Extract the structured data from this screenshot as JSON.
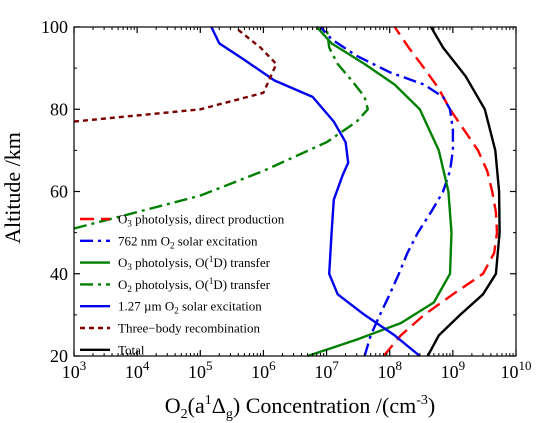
{
  "chart_data": {
    "type": "line",
    "xscale": "log",
    "xlim": [
      1000,
      10000000000
    ],
    "ylim": [
      20,
      100
    ],
    "x_ticks": [
      {
        "value": 1000,
        "base": "10",
        "exp": "3"
      },
      {
        "value": 10000,
        "base": "10",
        "exp": "4"
      },
      {
        "value": 100000,
        "base": "10",
        "exp": "5"
      },
      {
        "value": 1000000,
        "base": "10",
        "exp": "6"
      },
      {
        "value": 10000000,
        "base": "10",
        "exp": "7"
      },
      {
        "value": 100000000,
        "base": "10",
        "exp": "8"
      },
      {
        "value": 1000000000,
        "base": "10",
        "exp": "9"
      },
      {
        "value": 10000000000,
        "base": "10",
        "exp": "10"
      }
    ],
    "y_ticks": [
      {
        "value": 20,
        "label": "20"
      },
      {
        "value": 40,
        "label": "40"
      },
      {
        "value": 60,
        "label": "60"
      },
      {
        "value": 80,
        "label": "80"
      },
      {
        "value": 100,
        "label": "100"
      }
    ],
    "ylabel": "Altitude /km",
    "xlabel": {
      "prefix": "O",
      "sub1": "2",
      "mid1": "(a",
      "sup1": "1",
      "mid2": "Δ",
      "sub2": "g",
      "mid3": ") Concentration /(cm",
      "sup2": "-3",
      "suffix": ")"
    },
    "legend_position": "bottom-left",
    "series": [
      {
        "name": "O3 photolysis, direct production",
        "label": {
          "p1": "O",
          "s1": "3",
          "p2": " photolysis, direct production"
        },
        "color": "#ff0000",
        "dash": "dash",
        "points": [
          [
            80000000,
            20
          ],
          [
            150000000,
            25
          ],
          [
            350000000,
            30
          ],
          [
            1000000000,
            35
          ],
          [
            3000000000,
            40
          ],
          [
            4500000000,
            45
          ],
          [
            5000000000,
            50
          ],
          [
            4800000000,
            55
          ],
          [
            4200000000,
            60
          ],
          [
            3500000000,
            65
          ],
          [
            2500000000,
            70
          ],
          [
            1500000000,
            75
          ],
          [
            900000000,
            80
          ],
          [
            600000000,
            85
          ],
          [
            350000000,
            90
          ],
          [
            200000000,
            95
          ],
          [
            120000000,
            100
          ]
        ]
      },
      {
        "name": "762 nm O2 solar excitation",
        "label": {
          "p1": "762 nm O",
          "s1": "2",
          "p2": " solar excitation"
        },
        "color": "#0000ee",
        "dash": "dashdot",
        "points": [
          [
            40000000,
            20
          ],
          [
            50000000,
            25
          ],
          [
            70000000,
            30
          ],
          [
            100000000,
            35
          ],
          [
            140000000,
            40
          ],
          [
            190000000,
            45
          ],
          [
            280000000,
            50
          ],
          [
            450000000,
            55
          ],
          [
            700000000,
            60
          ],
          [
            900000000,
            65
          ],
          [
            1000000000,
            70
          ],
          [
            1000000000,
            75
          ],
          [
            900000000,
            80
          ],
          [
            700000000,
            83
          ],
          [
            350000000,
            86
          ],
          [
            100000000,
            89
          ],
          [
            30000000,
            93
          ],
          [
            12000000,
            97
          ],
          [
            8000000,
            100
          ]
        ]
      },
      {
        "name": "O3 photolysis, O(1D) transfer",
        "label": {
          "p1": "O",
          "s1": "3",
          "p2": " photolysis, O(",
          "sup": "1",
          "p3": "D) transfer"
        },
        "color": "#008000",
        "dash": "solid",
        "points": [
          [
            5000000,
            20
          ],
          [
            30000000,
            24
          ],
          [
            150000000,
            28
          ],
          [
            500000000,
            33
          ],
          [
            900000000,
            40
          ],
          [
            950000000,
            50
          ],
          [
            850000000,
            60
          ],
          [
            600000000,
            70
          ],
          [
            300000000,
            80
          ],
          [
            120000000,
            86
          ],
          [
            40000000,
            91
          ],
          [
            12000000,
            96
          ],
          [
            7000000,
            100
          ]
        ]
      },
      {
        "name": "O2 photolysis, O(1D) transfer",
        "label": {
          "p1": "O",
          "s1": "2",
          "p2": " photolysis, O(",
          "sup": "1",
          "p3": "D) transfer"
        },
        "color": "#008000",
        "dash": "dashdot",
        "points": [
          [
            1000,
            51
          ],
          [
            10000,
            55
          ],
          [
            100000,
            59
          ],
          [
            1000000,
            65
          ],
          [
            10000000,
            72
          ],
          [
            30000000,
            77
          ],
          [
            45000000,
            80
          ],
          [
            40000000,
            83
          ],
          [
            25000000,
            87
          ],
          [
            15000000,
            91
          ],
          [
            11000000,
            95
          ],
          [
            10000000,
            100
          ]
        ]
      },
      {
        "name": "1.27 µm O2 solar excitation",
        "label": {
          "p1": "1.27 µm O",
          "s1": "2",
          "p2": " solar excitation"
        },
        "color": "#0000ee",
        "dash": "solid",
        "points": [
          [
            300000000,
            20
          ],
          [
            120000000,
            25
          ],
          [
            40000000,
            30
          ],
          [
            15000000,
            35
          ],
          [
            11000000,
            40
          ],
          [
            12000000,
            50
          ],
          [
            13000000,
            58
          ],
          [
            18000000,
            64
          ],
          [
            22000000,
            67
          ],
          [
            20000000,
            72
          ],
          [
            13000000,
            77
          ],
          [
            6000000,
            83
          ],
          [
            1500000,
            87
          ],
          [
            500000,
            92
          ],
          [
            200000,
            96
          ],
          [
            150000,
            100
          ]
        ]
      },
      {
        "name": "Three-body recombination",
        "label": {
          "p1": "Three−body recombination"
        },
        "color": "#7a0000",
        "dash": "short",
        "points": [
          [
            1000,
            77
          ],
          [
            100000,
            80
          ],
          [
            1000000,
            84
          ],
          [
            1600000,
            91
          ],
          [
            900000,
            95
          ],
          [
            350000,
            100
          ]
        ]
      },
      {
        "name": "Total",
        "label": {
          "p1": "Total"
        },
        "color": "#000000",
        "dash": "solid",
        "points": [
          [
            400000000,
            20
          ],
          [
            600000000,
            25
          ],
          [
            1300000000,
            30
          ],
          [
            3000000000,
            35
          ],
          [
            4800000000,
            40
          ],
          [
            5500000000,
            50
          ],
          [
            5400000000,
            60
          ],
          [
            4700000000,
            70
          ],
          [
            3200000000,
            80
          ],
          [
            1600000000,
            88
          ],
          [
            700000000,
            95
          ],
          [
            450000000,
            100
          ]
        ]
      }
    ]
  }
}
